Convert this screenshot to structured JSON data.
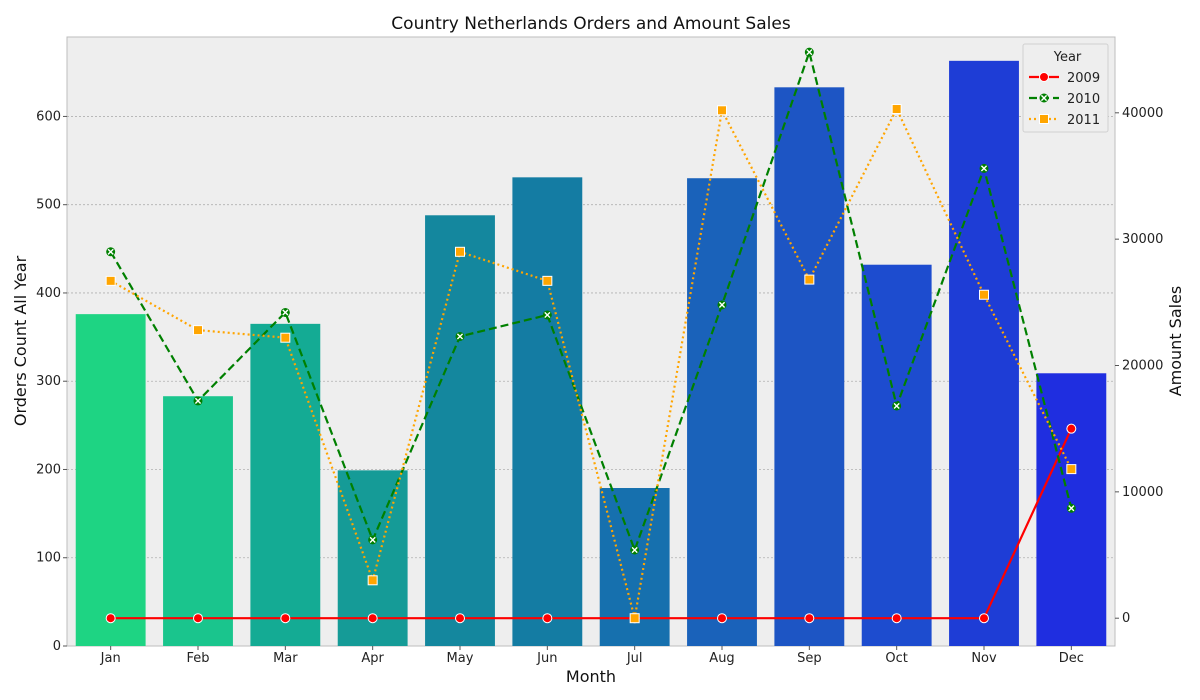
{
  "chart_data": {
    "type": "bar",
    "title": "Country Netherlands Orders and Amount Sales",
    "xlabel": "Month",
    "ylabel": "Orders Count All Year",
    "y2label": "Amount Sales",
    "categories": [
      "Jan",
      "Feb",
      "Mar",
      "Apr",
      "May",
      "Jun",
      "Jul",
      "Aug",
      "Sep",
      "Oct",
      "Nov",
      "Dec"
    ],
    "bars": {
      "values": [
        376,
        283,
        365,
        199,
        488,
        531,
        179,
        530,
        633,
        432,
        663,
        309
      ],
      "colors": [
        "#1ed483",
        "#1ac58d",
        "#14ab94",
        "#159b97",
        "#14879e",
        "#147ca3",
        "#1670ae",
        "#1a62ba",
        "#1d55c4",
        "#1d4ccf",
        "#1e3dd6",
        "#1f2ee0"
      ]
    },
    "ylim": [
      0,
      690
    ],
    "yticks": [
      0,
      100,
      200,
      300,
      400,
      500,
      600
    ],
    "y2lim": [
      -2200,
      46000
    ],
    "y2ticks": [
      0,
      10000,
      20000,
      30000,
      40000
    ],
    "legend": {
      "title": "Year",
      "placement": "top-right"
    },
    "series": [
      {
        "name": "2009",
        "color": "#ff0000",
        "line_style": "solid",
        "marker": "circle",
        "x_indices": [
          0,
          1,
          2,
          3,
          4,
          5,
          6,
          7,
          8,
          9,
          10,
          11
        ],
        "values": [
          0,
          0,
          0,
          0,
          0,
          0,
          0,
          0,
          0,
          0,
          0,
          15000
        ]
      },
      {
        "name": "2010",
        "color": "#008000",
        "line_style": "dashed",
        "marker": "x",
        "x_indices": [
          0,
          1,
          2,
          3,
          4,
          5,
          6,
          7,
          8,
          9,
          10,
          11
        ],
        "values": [
          29000,
          17200,
          24200,
          6200,
          22300,
          24000,
          5400,
          24800,
          44800,
          16800,
          35600,
          8700
        ]
      },
      {
        "name": "2011",
        "color": "#ffa500",
        "line_style": "dotted",
        "marker": "square",
        "x_indices": [
          0,
          1,
          2,
          3,
          4,
          5,
          6,
          7,
          8,
          9,
          10,
          11
        ],
        "values": [
          26700,
          22800,
          22200,
          3000,
          29000,
          26700,
          0,
          40200,
          26800,
          40300,
          25600,
          11800
        ]
      }
    ],
    "grid": true
  }
}
